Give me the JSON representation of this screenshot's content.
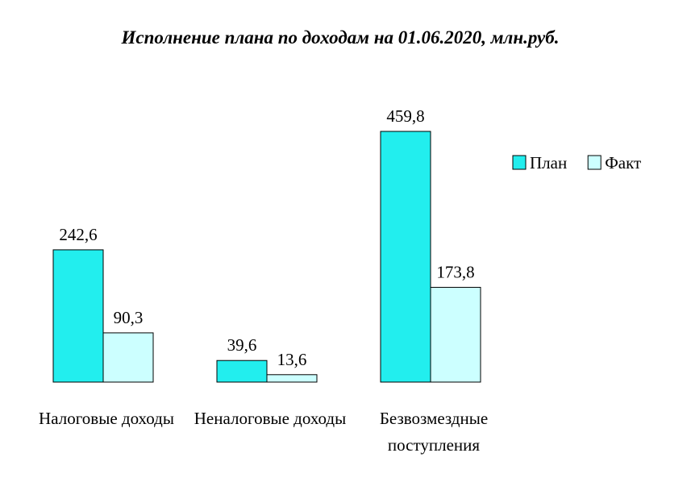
{
  "chart_data": {
    "type": "bar",
    "title": "Исполнение плана по доходам на 01.06.2020, млн.руб.",
    "categories": [
      "Налоговые доходы",
      "Неналоговые доходы",
      "Безвозмездные поступления"
    ],
    "series": [
      {
        "name": "План",
        "color": "#22eeee",
        "values": [
          242.6,
          39.6,
          459.8
        ],
        "value_labels": [
          "242,6",
          "39,6",
          "459,8"
        ]
      },
      {
        "name": "Факт",
        "color": "#ccffff",
        "values": [
          90.3,
          13.6,
          173.8
        ],
        "value_labels": [
          "90,3",
          "13,6",
          "173,8"
        ]
      }
    ],
    "legend": "right"
  }
}
